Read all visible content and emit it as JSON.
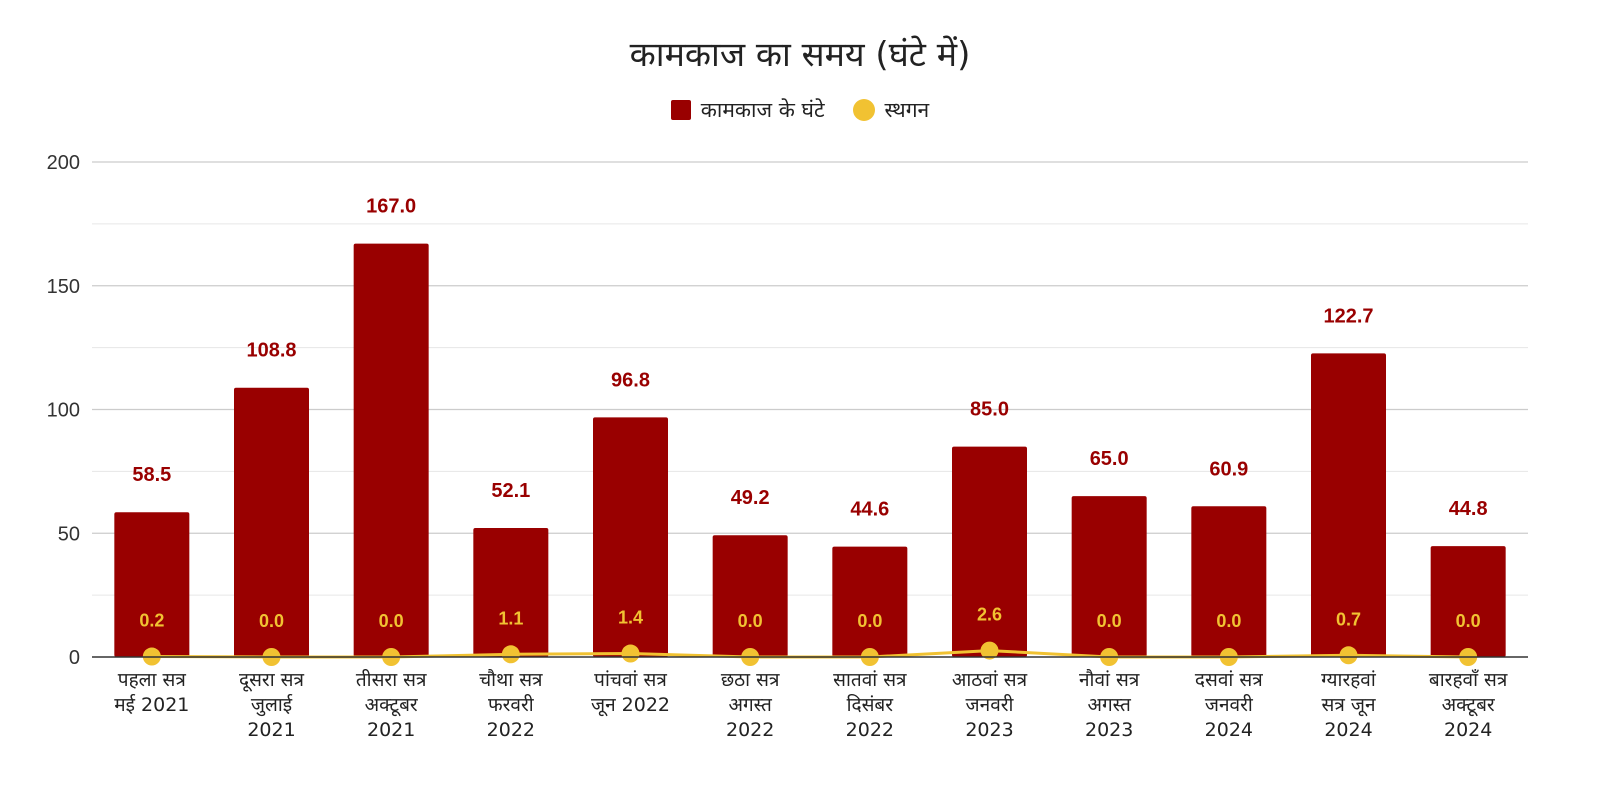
{
  "chart_data": {
    "type": "bar",
    "title": "कामकाज का समय (घंटे में)",
    "categories": [
      [
        "पहला सत्र",
        "मई 2021"
      ],
      [
        "दूसरा सत्र",
        "जुलाई",
        "2021"
      ],
      [
        "तीसरा सत्र",
        "अक्टूबर",
        "2021"
      ],
      [
        "चौथा सत्र",
        "फरवरी",
        "2022"
      ],
      [
        "पांचवां सत्र",
        "जून 2022"
      ],
      [
        "छठा सत्र",
        "अगस्त",
        "2022"
      ],
      [
        "सातवां सत्र",
        "दिसंबर",
        "2022"
      ],
      [
        "आठवां सत्र",
        "जनवरी",
        "2023"
      ],
      [
        "नौवां सत्र",
        "अगस्त",
        "2023"
      ],
      [
        "दसवां सत्र",
        "जनवरी",
        "2024"
      ],
      [
        "ग्यारहवां",
        "सत्र जून",
        "2024"
      ],
      [
        "बारहवाँ सत्र",
        "अक्टूबर",
        "2024"
      ]
    ],
    "series": [
      {
        "name": "कामकाज के घंटे",
        "type": "bar",
        "color": "#990000",
        "values": [
          58.5,
          108.8,
          167.0,
          52.1,
          96.8,
          49.2,
          44.6,
          85.0,
          65.0,
          60.9,
          122.7,
          44.8
        ],
        "labels": [
          "58.5",
          "108.8",
          "167.0",
          "52.1",
          "96.8",
          "49.2",
          "44.6",
          "85.0",
          "65.0",
          "60.9",
          "122.7",
          "44.8"
        ]
      },
      {
        "name": "स्थगन",
        "type": "line",
        "color": "#f1c232",
        "values": [
          0.2,
          0.0,
          0.0,
          1.1,
          1.4,
          0.0,
          0.0,
          2.6,
          0.0,
          0.0,
          0.7,
          0.0
        ],
        "labels": [
          "0.2",
          "0.0",
          "0.0",
          "1.1",
          "1.4",
          "0.0",
          "0.0",
          "2.6",
          "0.0",
          "0.0",
          "0.7",
          "0.0"
        ]
      }
    ],
    "ylim": [
      0,
      200
    ],
    "yticks": [
      "0",
      "50",
      "100",
      "150",
      "200"
    ],
    "ytick_values": [
      0,
      50,
      100,
      150,
      200
    ],
    "minor_grid_values": [
      25,
      75,
      125,
      175
    ],
    "grid": true,
    "legend_position": "top-center",
    "axis_color": "#333333",
    "grid_color": "#cccccc",
    "minor_grid_color": "#e6e6e6"
  }
}
